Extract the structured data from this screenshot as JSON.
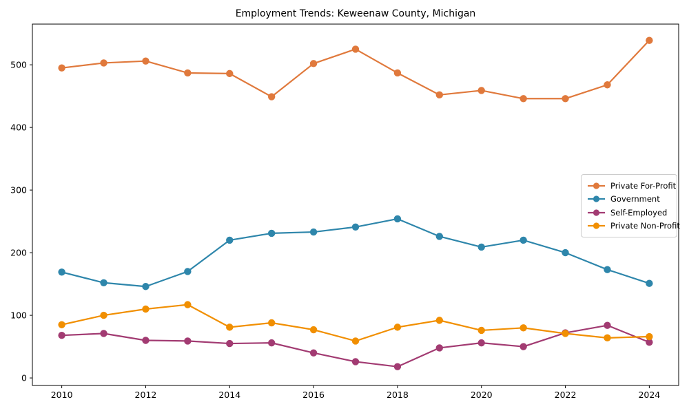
{
  "chart_data": {
    "type": "line",
    "title": "Employment Trends: Keweenaw County, Michigan",
    "xlabel": "",
    "ylabel": "",
    "x": [
      2010,
      2011,
      2012,
      2013,
      2014,
      2015,
      2016,
      2017,
      2018,
      2019,
      2020,
      2021,
      2022,
      2023,
      2024
    ],
    "series": [
      {
        "name": "Private For-Profit",
        "color": "#E0793C",
        "values": [
          495,
          503,
          506,
          487,
          486,
          449,
          502,
          525,
          487,
          452,
          459,
          446,
          446,
          468,
          539
        ]
      },
      {
        "name": "Government",
        "color": "#2E86AB",
        "values": [
          169,
          152,
          146,
          170,
          220,
          231,
          233,
          241,
          254,
          226,
          209,
          220,
          200,
          173,
          151
        ]
      },
      {
        "name": "Self-Employed",
        "color": "#A23B72",
        "values": [
          68,
          71,
          60,
          59,
          55,
          56,
          40,
          26,
          18,
          48,
          56,
          50,
          72,
          84,
          57
        ]
      },
      {
        "name": "Private Non-Profit",
        "color": "#F18F01",
        "values": [
          85,
          100,
          110,
          117,
          81,
          88,
          77,
          59,
          81,
          92,
          76,
          80,
          71,
          64,
          66
        ]
      }
    ],
    "xticks": [
      2010,
      2012,
      2014,
      2016,
      2018,
      2020,
      2022,
      2024
    ],
    "yticks": [
      0,
      100,
      200,
      300,
      400,
      500
    ],
    "xlim": [
      2009.3,
      2024.7
    ],
    "ylim": [
      -12,
      565
    ],
    "grid": false,
    "legend_position": "center right",
    "axis_color": "#000000",
    "background": "#ffffff"
  }
}
